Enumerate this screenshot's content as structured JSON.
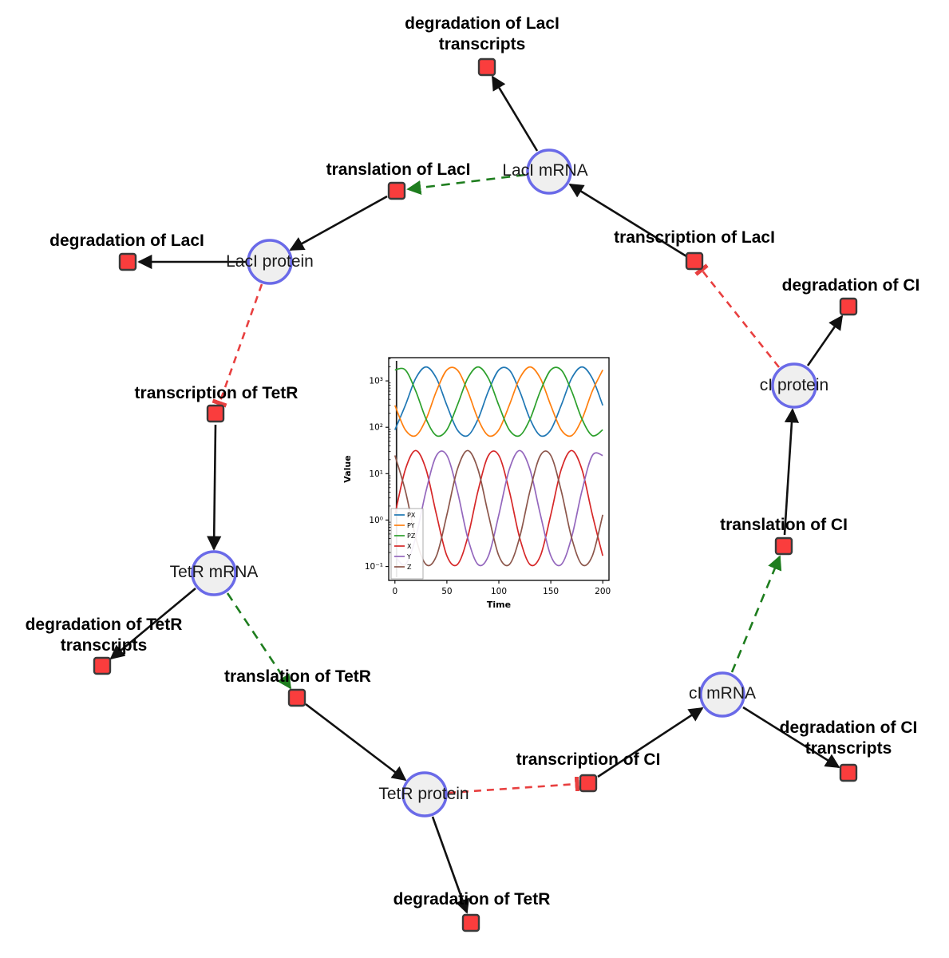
{
  "diagram": {
    "species": [
      {
        "label": "LacI mRNA"
      },
      {
        "label": "LacI protein"
      },
      {
        "label": "TetR mRNA"
      },
      {
        "label": "TetR protein"
      },
      {
        "label": "cI mRNA"
      },
      {
        "label": "cI protein"
      }
    ],
    "reactions": [
      {
        "label": "degradation of LacI transcripts"
      },
      {
        "label": "translation of LacI"
      },
      {
        "label": "transcription of LacI"
      },
      {
        "label": "degradation of LacI"
      },
      {
        "label": "degradation of CI"
      },
      {
        "label": "transcription of TetR"
      },
      {
        "label": "translation of CI"
      },
      {
        "label": "degradation of TetR transcripts"
      },
      {
        "label": "translation of TetR"
      },
      {
        "label": "transcription of CI"
      },
      {
        "label": "degradation of CI transcripts"
      },
      {
        "label": "degradation of TetR"
      }
    ],
    "colors": {
      "species_fill": "#efefef",
      "species_border": "#6a6ae8",
      "reaction_fill": "#fa3d3d",
      "reaction_border": "#3a3a3a",
      "edge": "#111111",
      "activation": "#1e7d1e",
      "inhibition": "#e84040"
    }
  },
  "chart_data": {
    "type": "line",
    "title": "",
    "xlabel": "Time",
    "ylabel": "Value",
    "x_scale": "linear",
    "y_scale": "log",
    "xlim": [
      -6,
      206
    ],
    "log_ylim": [
      -1.3,
      3.5
    ],
    "xticks": [
      0,
      50,
      100,
      150,
      200
    ],
    "yticks": [
      {
        "exp": -1,
        "label": "10⁻¹"
      },
      {
        "exp": 0,
        "label": "10⁰"
      },
      {
        "exp": 1,
        "label": "10¹"
      },
      {
        "exp": 2,
        "label": "10²"
      },
      {
        "exp": 3,
        "label": "10³"
      }
    ],
    "x": [
      0,
      10,
      20,
      30,
      40,
      50,
      60,
      70,
      80,
      90,
      100,
      110,
      120,
      130,
      140,
      150,
      160,
      170,
      180,
      190,
      200
    ],
    "series": [
      {
        "name": "PX",
        "color": "#1f77b4",
        "values": [
          88,
          296,
          1127,
          1995,
          1127,
          296,
          88,
          66,
          150,
          605,
          1719,
          1719,
          605,
          150,
          66,
          88,
          296,
          1127,
          1995,
          1127,
          296
        ]
      },
      {
        "name": "PY",
        "color": "#ff7f0e",
        "values": [
          296,
          88,
          66,
          150,
          605,
          1719,
          1719,
          605,
          150,
          66,
          88,
          296,
          1127,
          1995,
          1127,
          296,
          88,
          66,
          150,
          605,
          1719
        ]
      },
      {
        "name": "PZ",
        "color": "#2ca02c",
        "values": [
          1719,
          1719,
          605,
          150,
          66,
          88,
          296,
          1127,
          1995,
          1127,
          296,
          88,
          66,
          150,
          605,
          1719,
          1719,
          605,
          150,
          66,
          88
        ]
      },
      {
        "name": "X",
        "color": "#d62728",
        "values": [
          1.3,
          12.2,
          31.6,
          12.2,
          1.3,
          0.17,
          0.11,
          0.42,
          4.3,
          24.7,
          24.7,
          4.3,
          0.42,
          0.11,
          0.17,
          1.3,
          12.2,
          31.6,
          12.2,
          1.3,
          0.17
        ]
      },
      {
        "name": "Y",
        "color": "#9467bd",
        "values": [
          0.17,
          0.11,
          0.42,
          4.3,
          24.7,
          24.7,
          4.3,
          0.42,
          0.11,
          0.17,
          1.3,
          12.2,
          31.6,
          12.2,
          1.3,
          0.17,
          0.11,
          0.42,
          4.3,
          24.7,
          24.7
        ]
      },
      {
        "name": "Z",
        "color": "#8c564b",
        "values": [
          24.7,
          4.3,
          0.42,
          0.11,
          0.17,
          1.3,
          12.2,
          31.6,
          12.2,
          1.3,
          0.17,
          0.11,
          0.42,
          4.3,
          24.7,
          24.7,
          4.3,
          0.42,
          0.11,
          0.17,
          1.3
        ]
      }
    ],
    "legend_position": "left-lower",
    "grid": false
  }
}
